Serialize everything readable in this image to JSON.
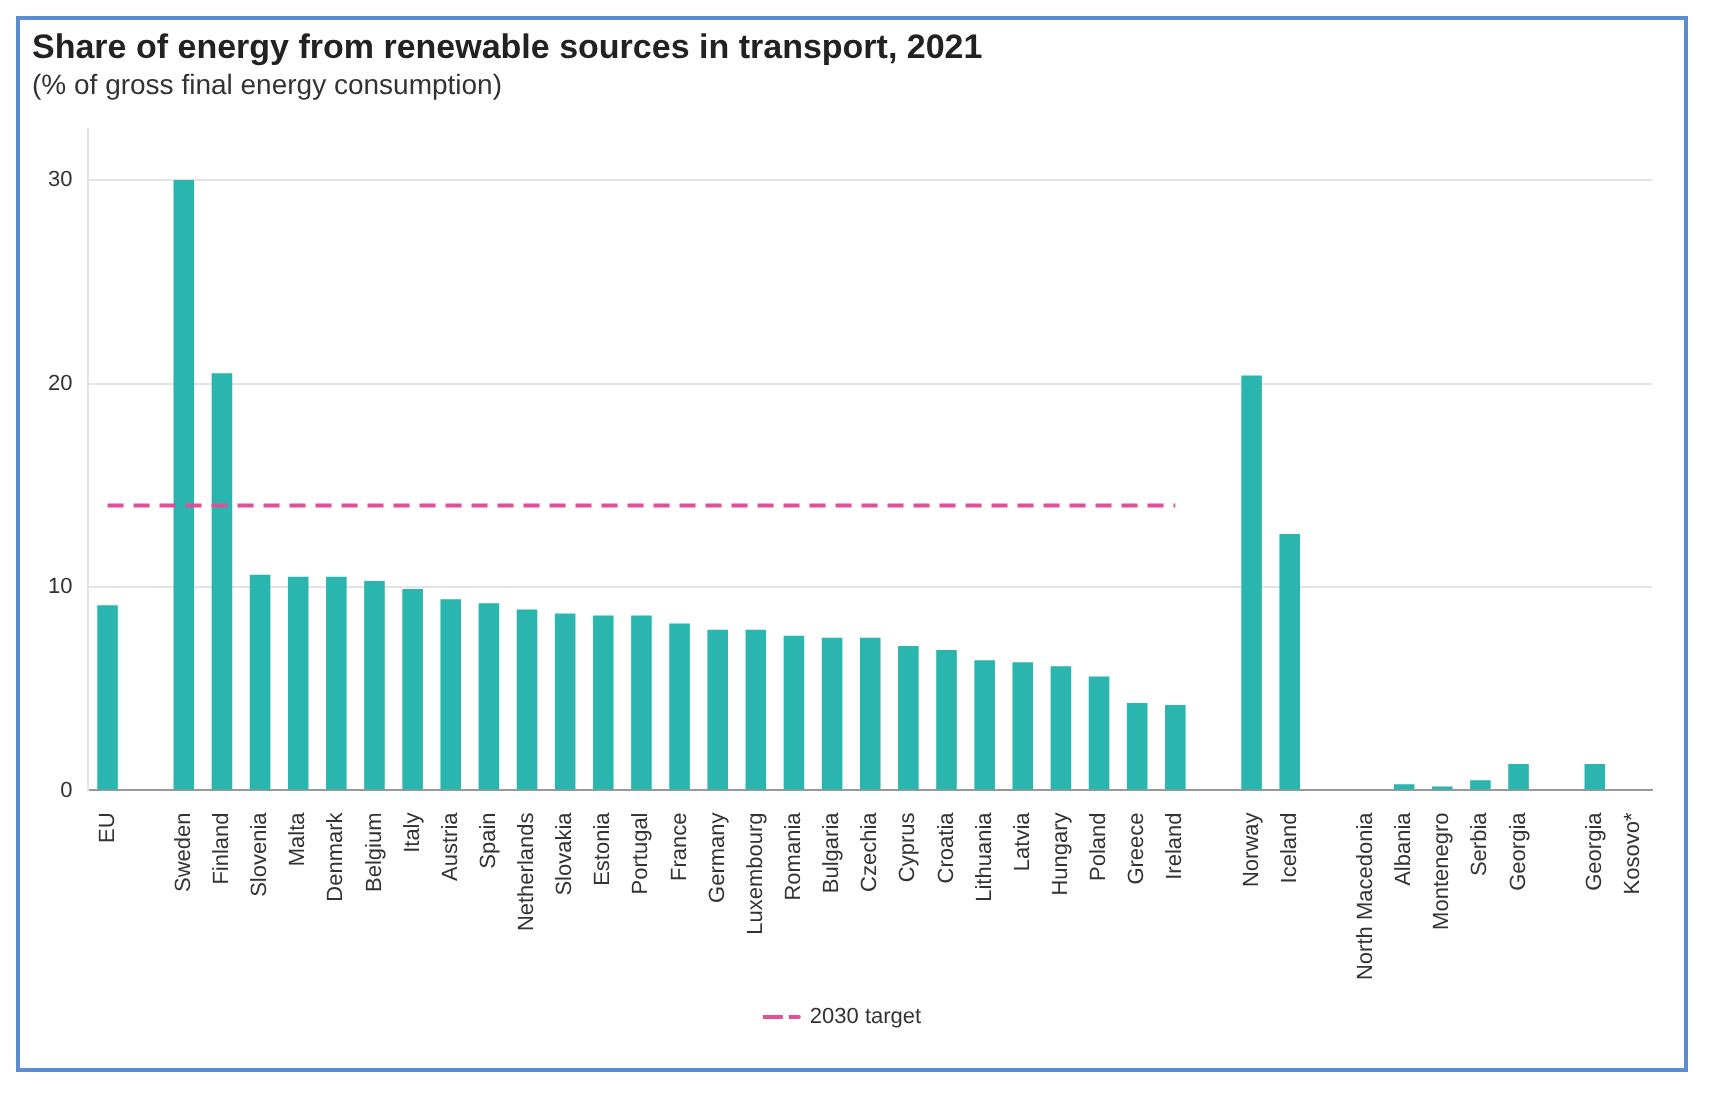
{
  "chart_data": {
    "type": "bar",
    "title": "Share of energy from renewable sources in transport, 2021",
    "subtitle": "(% of gross final energy consumption)",
    "categories": [
      "EU",
      null,
      "Sweden",
      "Finland",
      "Slovenia",
      "Malta",
      "Denmark",
      "Belgium",
      "Italy",
      "Austria",
      "Spain",
      "Netherlands",
      "Slovakia",
      "Estonia",
      "Portugal",
      "France",
      "Germany",
      "Luxembourg",
      "Romania",
      "Bulgaria",
      "Czechia",
      "Cyprus",
      "Croatia",
      "Lithuania",
      "Latvia",
      "Hungary",
      "Poland",
      "Greece",
      "Ireland",
      null,
      "Norway",
      "Iceland",
      null,
      "North Macedonia",
      "Albania",
      "Montenegro",
      "Serbia",
      "Georgia",
      null,
      "Georgia",
      "Kosovo*"
    ],
    "series": [
      {
        "color": "#2ab5ae",
        "values": [
          9.1,
          null,
          30.0,
          20.5,
          10.6,
          10.5,
          10.5,
          10.3,
          9.9,
          9.4,
          9.2,
          8.9,
          8.7,
          8.6,
          8.6,
          8.2,
          7.9,
          7.9,
          7.6,
          7.5,
          7.5,
          7.1,
          6.9,
          6.4,
          6.3,
          6.1,
          5.6,
          4.3,
          4.2,
          null,
          20.4,
          12.6,
          null,
          null,
          0.3,
          0.2,
          0.5,
          1.3,
          null,
          1.3,
          null
        ]
      },
      {
        "name": "2030 target",
        "type": "line",
        "color": "#e0509a",
        "line_style": "dashed",
        "marker": "none",
        "values": [
          14,
          14,
          14,
          14,
          14,
          14,
          14,
          14,
          14,
          14,
          14,
          14,
          14,
          14,
          14,
          14,
          14,
          14,
          14,
          14,
          14,
          14,
          14,
          14,
          14,
          14,
          14,
          14,
          14,
          null,
          null,
          null,
          null,
          null,
          null,
          null,
          null,
          null,
          null,
          null,
          null
        ]
      }
    ],
    "ylim": [
      0,
      32.5
    ],
    "yticks": [
      0,
      10,
      20,
      30
    ],
    "grid": "y",
    "legend": "bottom"
  }
}
